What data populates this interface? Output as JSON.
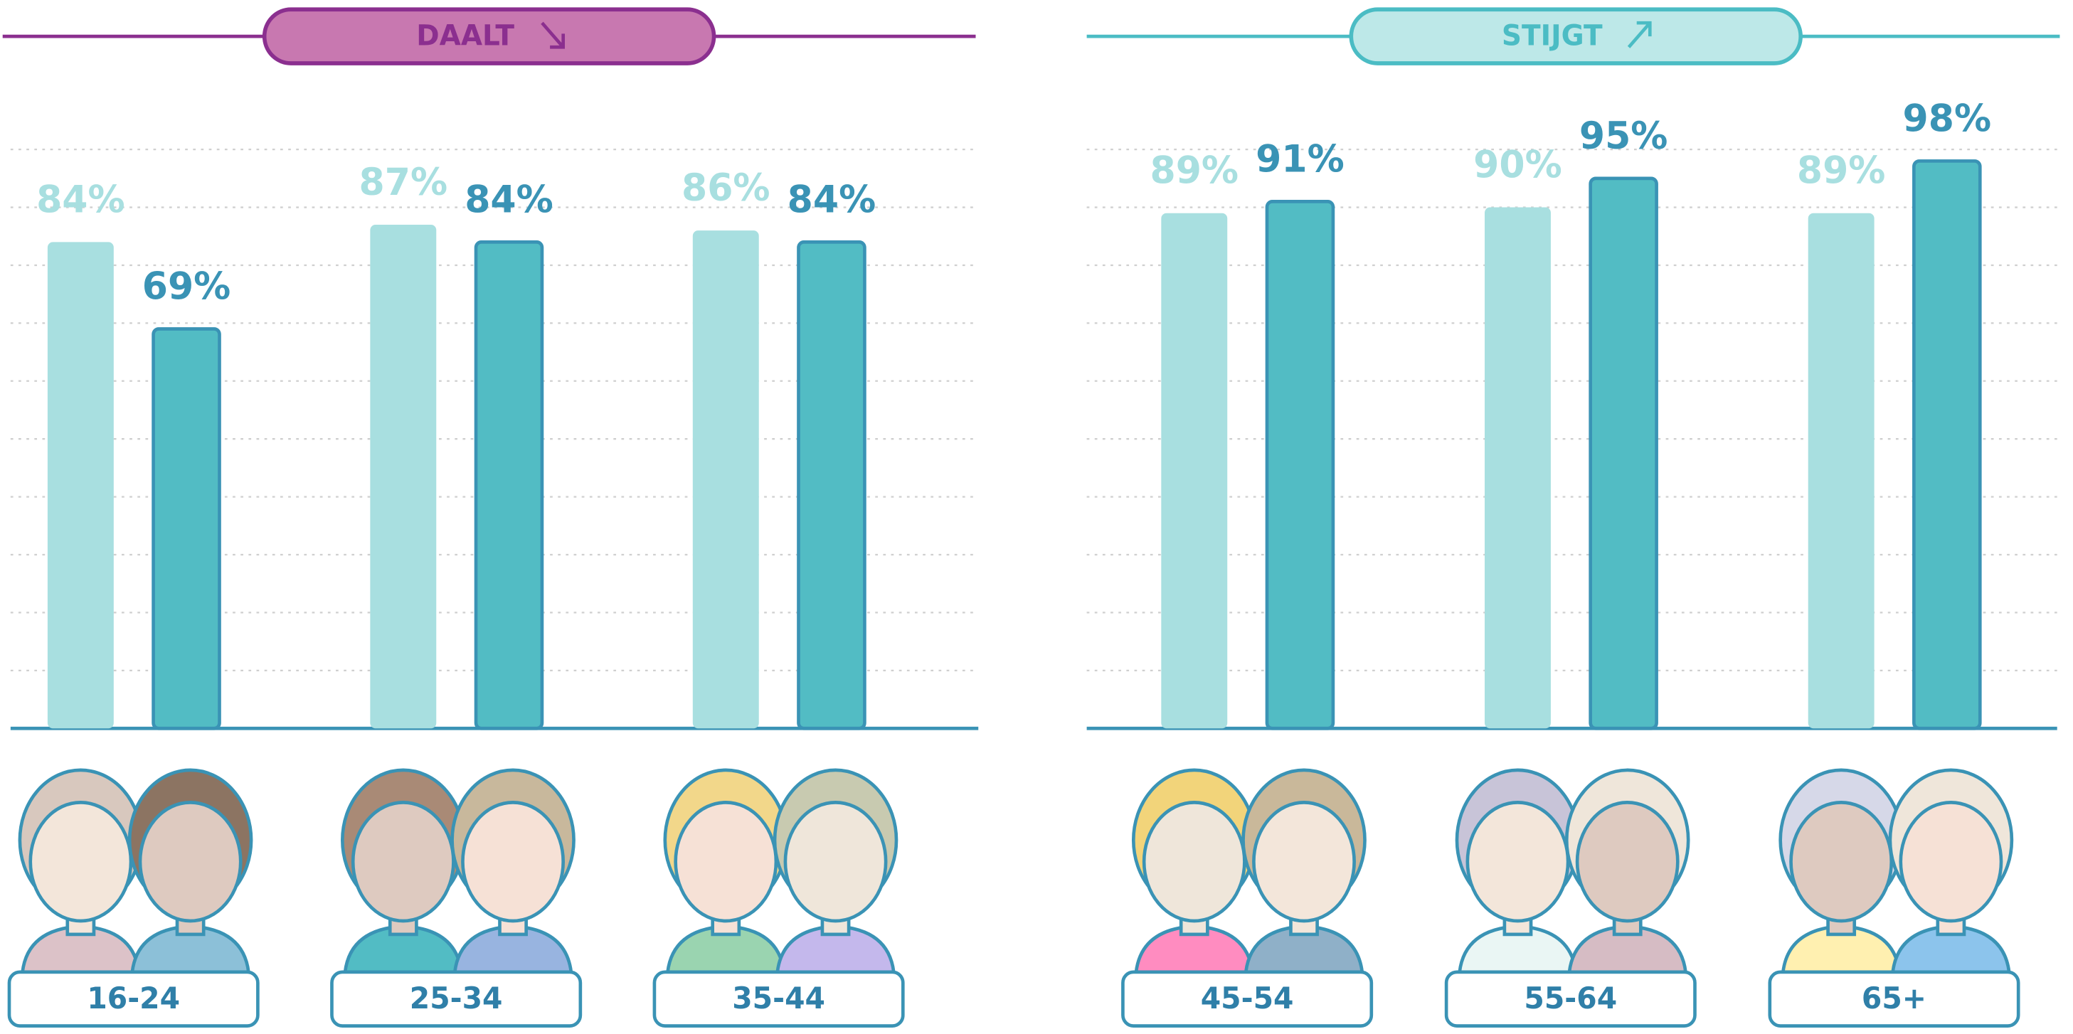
{
  "chart_data": [
    {
      "type": "bar",
      "title": "DAALT",
      "categories": [
        "16-24",
        "25-34",
        "35-44"
      ],
      "series": [
        {
          "color": "#a8dfe0",
          "values": [
            84,
            87,
            86
          ],
          "value_labels": [
            "84%",
            "87%",
            "86%"
          ]
        },
        {
          "color": "#52bcc4",
          "values": [
            69,
            84,
            84
          ],
          "value_labels": [
            "69%",
            "84%",
            "84%"
          ]
        }
      ],
      "ylim": [
        0,
        100
      ],
      "yticks": [
        0,
        10,
        20,
        30,
        40,
        50,
        60,
        70,
        80,
        90,
        100
      ],
      "grid": true
    },
    {
      "type": "bar",
      "title": "STIJGT",
      "categories": [
        "45-54",
        "55-64",
        "65+"
      ],
      "series": [
        {
          "color": "#a8dfe0",
          "values": [
            89,
            90,
            89
          ],
          "value_labels": [
            "89%",
            "90%",
            "89%"
          ]
        },
        {
          "color": "#52bcc4",
          "values": [
            91,
            95,
            98
          ],
          "value_labels": [
            "91%",
            "95%",
            "98%"
          ]
        }
      ],
      "ylim": [
        0,
        100
      ],
      "yticks": [
        0,
        10,
        20,
        30,
        40,
        50,
        60,
        70,
        80,
        90,
        100
      ],
      "grid": true
    }
  ]
}
